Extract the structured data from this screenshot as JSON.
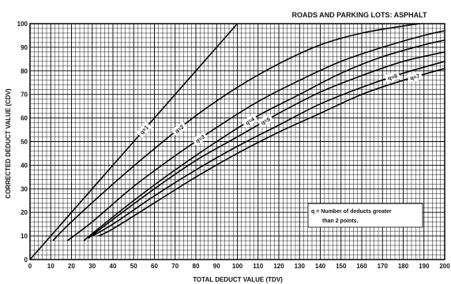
{
  "chart_data": {
    "type": "line",
    "title": "ROADS AND PARKING LOTS:  ASPHALT",
    "xlabel": "TOTAL DEDUCT VALUE (TDV)",
    "ylabel": "CORRECTED DEDUCT VALUE (CDV)",
    "xlim": [
      0,
      200
    ],
    "ylim": [
      0,
      100
    ],
    "xticks": [
      "0",
      "10",
      "20",
      "30",
      "40",
      "50",
      "60",
      "70",
      "80",
      "90",
      "100",
      "110",
      "120",
      "130",
      "140",
      "150",
      "160",
      "170",
      "180",
      "190",
      "200"
    ],
    "yticks": [
      "0",
      "10",
      "20",
      "30",
      "40",
      "50",
      "60",
      "70",
      "80",
      "90",
      "100"
    ],
    "grid": true,
    "note_line1": "q = Number of deducts greater",
    "note_line2": "than 2 points.",
    "series": [
      {
        "name": "q=1",
        "x": [
          0,
          20,
          40,
          60,
          80,
          100
        ],
        "y": [
          0,
          20,
          40,
          60,
          80,
          100
        ]
      },
      {
        "name": "q=2",
        "x": [
          11,
          20,
          40,
          60,
          80,
          100,
          120,
          140,
          160,
          180,
          188
        ],
        "y": [
          8,
          16,
          32,
          47,
          61,
          73,
          83,
          91,
          96,
          99,
          100
        ]
      },
      {
        "name": "q=3",
        "x": [
          18,
          30,
          50,
          70,
          90,
          110,
          130,
          150,
          170,
          190,
          200
        ],
        "y": [
          8,
          16,
          31,
          44,
          56,
          67,
          76,
          84,
          90,
          95,
          97
        ]
      },
      {
        "name": "q=4",
        "x": [
          26,
          30,
          50,
          70,
          90,
          110,
          130,
          150,
          170,
          190,
          200
        ],
        "y": [
          8,
          11,
          25,
          38,
          50,
          61,
          70,
          79,
          86,
          91,
          93
        ]
      },
      {
        "name": "q=5",
        "x": [
          28,
          40,
          60,
          80,
          100,
          120,
          140,
          160,
          180,
          200
        ],
        "y": [
          9,
          17,
          30,
          42,
          52,
          62,
          71,
          78,
          84,
          88
        ]
      },
      {
        "name": "q=6",
        "x": [
          30,
          40,
          60,
          80,
          100,
          120,
          140,
          160,
          180,
          200
        ],
        "y": [
          10,
          15,
          27,
          38,
          48,
          57,
          66,
          73,
          79,
          84
        ]
      },
      {
        "name": "q=7",
        "x": [
          33,
          40,
          60,
          80,
          100,
          120,
          140,
          160,
          180,
          200
        ],
        "y": [
          10,
          13,
          24,
          35,
          45,
          54,
          62,
          70,
          76,
          81
        ]
      }
    ]
  }
}
